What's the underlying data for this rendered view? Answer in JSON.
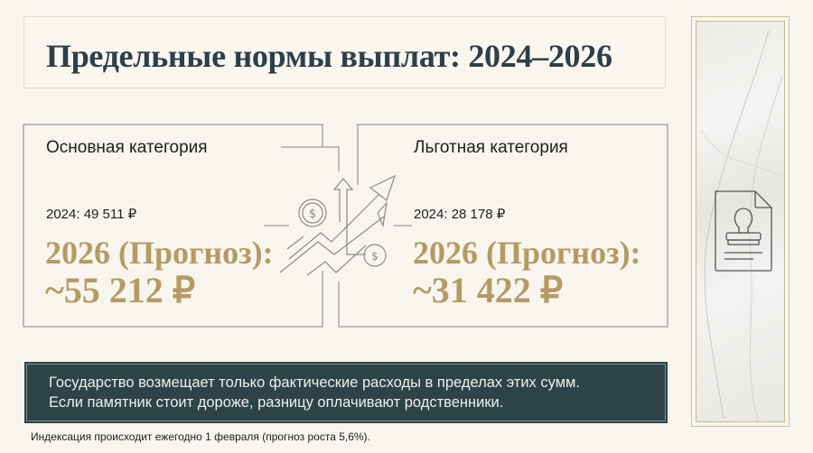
{
  "title": "Предельные нормы выплат: 2024–2026",
  "cards": [
    {
      "label": "Основная категория",
      "year_2024": "2024: 49 511 ₽",
      "forecast_label": "2026 (Прогноз):",
      "forecast_value": "~55 212 ₽"
    },
    {
      "label": "Льготная категория",
      "year_2024": "2024: 28 178 ₽",
      "forecast_label": "2026 (Прогноз):",
      "forecast_value": "~31 422 ₽"
    }
  ],
  "center_icon": "growth-arrows-dollar-icon",
  "side_icon": "stamp-document-icon",
  "note": {
    "line1": "Государство возмещает только фактические расходы в пределах этих сумм.",
    "line2": "Если памятник стоит дороже, разницу оплачивают родственники."
  },
  "footnote": "Индексация происходит ежегодно 1 февраля (прогноз роста 5,6%).",
  "colors": {
    "title": "#2d4047",
    "accent_gold": "#b59b62",
    "note_bg": "#2c4448",
    "background": "#f7f5ee"
  }
}
